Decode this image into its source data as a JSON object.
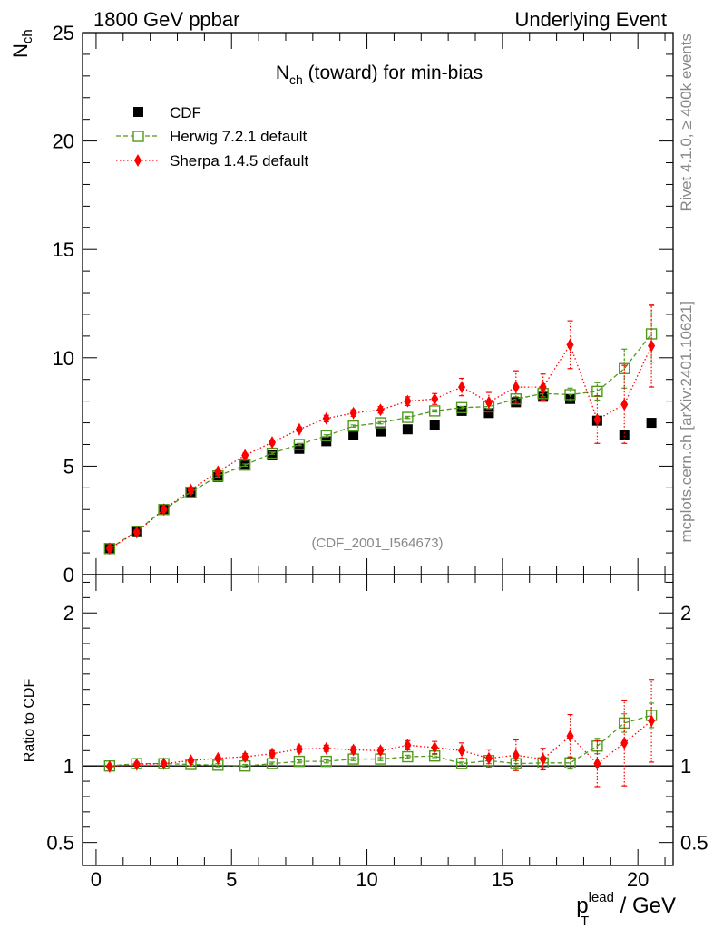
{
  "header": {
    "left": "1800 GeV ppbar",
    "right": "Underlying Event"
  },
  "side": {
    "rivet": "Rivet 4.1.0, ≥ 400k events",
    "mcplots": "mcplots.cern.ch [arXiv:2401.10621]"
  },
  "chart_data": [
    {
      "type": "scatter",
      "title": "N_ch (toward) for min-bias",
      "title_main": "N",
      "title_sub": "ch",
      "title_rest": " (toward) for min-bias",
      "watermark": "(CDF_2001_I564673)",
      "ylabel_main": "N",
      "ylabel_sub": "ch",
      "xlim": [
        -0.5,
        21.3
      ],
      "ylim": [
        0,
        25
      ],
      "yticks": [
        0,
        5,
        10,
        15,
        20,
        25
      ],
      "ytick_labels": [
        "0",
        "5",
        "10",
        "15",
        "20",
        "25"
      ],
      "legend_position": "top-left",
      "series": [
        {
          "name": "CDF",
          "color": "#000000",
          "marker": "square-filled",
          "x": [
            0.5,
            1.5,
            2.5,
            3.5,
            4.5,
            5.5,
            6.5,
            7.5,
            8.5,
            9.5,
            10.5,
            11.5,
            12.5,
            13.5,
            14.5,
            15.5,
            16.5,
            17.5,
            18.5,
            19.5,
            20.5
          ],
          "y": [
            1.2,
            1.95,
            3.0,
            3.75,
            4.5,
            5.05,
            5.5,
            5.8,
            6.15,
            6.45,
            6.6,
            6.7,
            6.9,
            7.55,
            7.45,
            7.95,
            8.2,
            8.1,
            7.1,
            6.45,
            7.0
          ]
        },
        {
          "name": "Herwig 7.2.1 default",
          "color": "#4f9a1c",
          "marker": "square-open",
          "line": "dashed",
          "x": [
            0.5,
            1.5,
            2.5,
            3.5,
            4.5,
            5.5,
            6.5,
            7.5,
            8.5,
            9.5,
            10.5,
            11.5,
            12.5,
            13.5,
            14.5,
            15.5,
            16.5,
            17.5,
            18.5,
            19.5,
            20.5
          ],
          "y": [
            1.2,
            2.0,
            3.0,
            3.8,
            4.55,
            5.05,
            5.6,
            6.0,
            6.4,
            6.85,
            7.0,
            7.25,
            7.55,
            7.7,
            7.75,
            8.1,
            8.35,
            8.3,
            8.45,
            9.5,
            11.1
          ],
          "err": [
            0.05,
            0.05,
            0.05,
            0.05,
            0.05,
            0.05,
            0.05,
            0.05,
            0.05,
            0.05,
            0.05,
            0.05,
            0.05,
            0.05,
            0.1,
            0.1,
            0.15,
            0.3,
            0.4,
            0.9,
            1.3
          ]
        },
        {
          "name": "Sherpa 1.4.5 default",
          "color": "#ff0000",
          "marker": "diamond",
          "line": "dotted",
          "x": [
            0.5,
            1.5,
            2.5,
            3.5,
            4.5,
            5.5,
            6.5,
            7.5,
            8.5,
            9.5,
            10.5,
            11.5,
            12.5,
            13.5,
            14.5,
            15.5,
            16.5,
            17.5,
            18.5,
            19.5,
            20.5
          ],
          "y": [
            1.2,
            1.95,
            3.0,
            3.9,
            4.75,
            5.5,
            6.1,
            6.7,
            7.2,
            7.45,
            7.6,
            8.0,
            8.1,
            8.65,
            7.95,
            8.65,
            8.65,
            10.6,
            7.15,
            7.85,
            10.55
          ],
          "err": [
            0.05,
            0.05,
            0.05,
            0.05,
            0.05,
            0.1,
            0.1,
            0.1,
            0.15,
            0.15,
            0.15,
            0.2,
            0.25,
            0.4,
            0.45,
            0.75,
            0.6,
            1.1,
            1.1,
            1.8,
            1.9
          ]
        }
      ]
    },
    {
      "type": "scatter",
      "title": "Ratio to CDF",
      "ylabel": "Ratio to CDF",
      "xlabel_main": "p",
      "xlabel_sub": "T",
      "xlabel_sup": "lead",
      "xlabel_rest": " / GeV",
      "xlim": [
        -0.5,
        21.3
      ],
      "ylim": [
        0.35,
        2.25
      ],
      "yticks": [
        0.5,
        1,
        2
      ],
      "ytick_labels": [
        "0.5",
        "1",
        "2"
      ],
      "xticks": [
        0,
        5,
        10,
        15,
        20
      ],
      "xtick_labels": [
        "0",
        "5",
        "10",
        "15",
        "20"
      ],
      "reference_line": 1,
      "series": [
        {
          "name": "Herwig 7.2.1 default",
          "color": "#4f9a1c",
          "marker": "square-open",
          "line": "dashed",
          "x": [
            0.5,
            1.5,
            2.5,
            3.5,
            4.5,
            5.5,
            6.5,
            7.5,
            8.5,
            9.5,
            10.5,
            11.5,
            12.5,
            13.5,
            14.5,
            15.5,
            16.5,
            17.5,
            18.5,
            19.5,
            20.5
          ],
          "y": [
            1.0,
            1.015,
            1.015,
            1.01,
            1.005,
            1.0,
            1.015,
            1.03,
            1.03,
            1.045,
            1.045,
            1.06,
            1.065,
            1.015,
            1.035,
            1.015,
            1.02,
            1.02,
            1.13,
            1.28,
            1.33
          ],
          "err": [
            0.01,
            0.01,
            0.01,
            0.01,
            0.01,
            0.01,
            0.01,
            0.01,
            0.01,
            0.01,
            0.01,
            0.01,
            0.01,
            0.01,
            0.02,
            0.02,
            0.03,
            0.04,
            0.05,
            0.06,
            0.08
          ]
        },
        {
          "name": "Sherpa 1.4.5 default",
          "color": "#ff0000",
          "marker": "diamond",
          "line": "dotted",
          "x": [
            0.5,
            1.5,
            2.5,
            3.5,
            4.5,
            5.5,
            6.5,
            7.5,
            8.5,
            9.5,
            10.5,
            11.5,
            12.5,
            13.5,
            14.5,
            15.5,
            16.5,
            17.5,
            18.5,
            19.5,
            20.5
          ],
          "y": [
            0.995,
            1.01,
            1.015,
            1.035,
            1.05,
            1.06,
            1.08,
            1.11,
            1.115,
            1.105,
            1.1,
            1.135,
            1.12,
            1.1,
            1.05,
            1.07,
            1.045,
            1.195,
            1.015,
            1.15,
            1.295
          ],
          "err": [
            0.01,
            0.01,
            0.01,
            0.01,
            0.01,
            0.02,
            0.02,
            0.02,
            0.02,
            0.02,
            0.02,
            0.03,
            0.04,
            0.05,
            0.06,
            0.1,
            0.07,
            0.14,
            0.15,
            0.28,
            0.27
          ]
        }
      ]
    }
  ]
}
